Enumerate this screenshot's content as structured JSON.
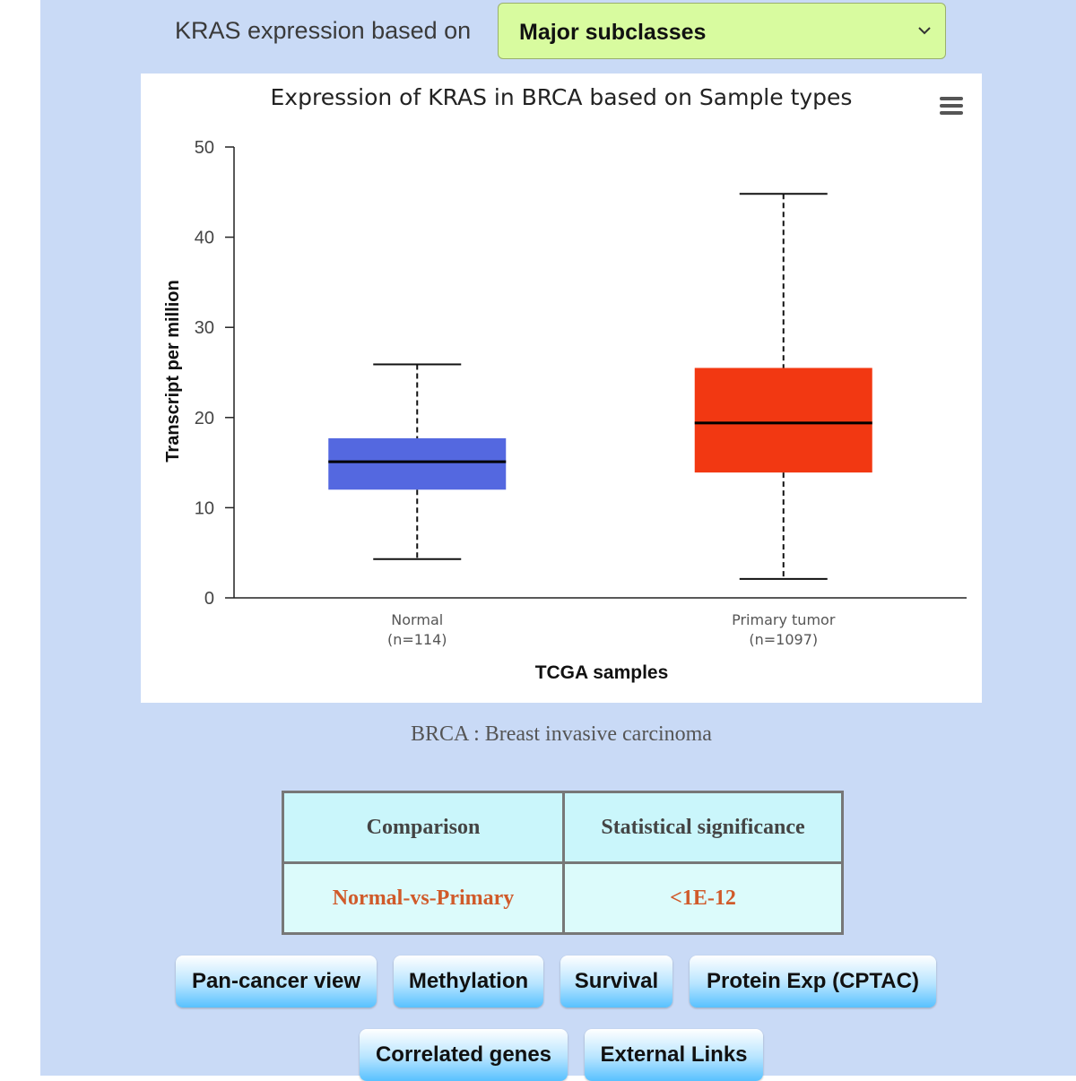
{
  "header": {
    "label": "KRAS expression based on",
    "select_value": "Major subclasses",
    "select_icon": "chevron-down-icon"
  },
  "chart_menu_icon": "hamburger-menu-icon",
  "chart_data": {
    "type": "box",
    "title": "Expression of KRAS in BRCA based on Sample types",
    "xlabel": "TCGA samples",
    "ylabel": "Transcript per million",
    "ylim": [
      0,
      50
    ],
    "yticks": [
      0,
      10,
      20,
      30,
      40,
      50
    ],
    "grid": false,
    "categories": [
      {
        "name": "Normal",
        "n_label": "(n=114)",
        "min": 4.3,
        "q1": 12.0,
        "median": 15.1,
        "q3": 17.7,
        "max": 25.9,
        "color": "#5468e0"
      },
      {
        "name": "Primary tumor",
        "n_label": "(n=1097)",
        "min": 2.1,
        "q1": 13.9,
        "median": 19.4,
        "q3": 25.5,
        "max": 44.8,
        "color": "#f23812"
      }
    ]
  },
  "caption": "BRCA : Breast invasive carcinoma",
  "table": {
    "headers": [
      "Comparison",
      "Statistical significance"
    ],
    "rows": [
      [
        "Normal-vs-Primary",
        "<1E-12"
      ]
    ],
    "value_color": "#d05a2a"
  },
  "buttons": [
    {
      "label": "Pan-cancer view"
    },
    {
      "label": "Methylation"
    },
    {
      "label": "Survival"
    },
    {
      "label": "Protein Exp (CPTAC)"
    },
    {
      "label": "Correlated genes"
    },
    {
      "label": "External Links"
    }
  ]
}
